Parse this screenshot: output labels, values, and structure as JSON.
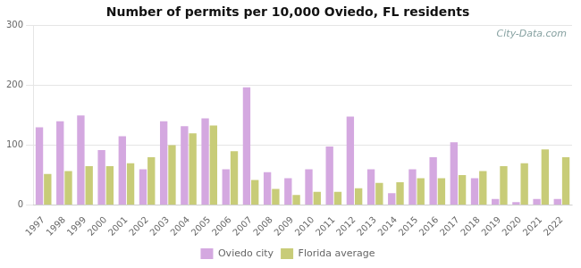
{
  "chart_data": {
    "type": "bar",
    "title": "Number of permits per 10,000 Oviedo, FL residents",
    "categories": [
      "1997",
      "1998",
      "1999",
      "2000",
      "2001",
      "2002",
      "2003",
      "2004",
      "2005",
      "2006",
      "2007",
      "2008",
      "2009",
      "2010",
      "2011",
      "2012",
      "2013",
      "2014",
      "2015",
      "2016",
      "2017",
      "2018",
      "2019",
      "2020",
      "2021",
      "2022"
    ],
    "series": [
      {
        "name": "Oviedo city",
        "color": "#d4a8e0",
        "values": [
          130,
          140,
          150,
          92,
          115,
          60,
          140,
          132,
          145,
          60,
          197,
          55,
          45,
          60,
          98,
          148,
          60,
          20,
          60,
          80,
          105,
          45,
          10,
          5,
          10,
          10
        ]
      },
      {
        "name": "Florida average",
        "color": "#c8cc78",
        "values": [
          52,
          57,
          65,
          65,
          70,
          80,
          100,
          120,
          133,
          90,
          42,
          27,
          17,
          22,
          22,
          28,
          37,
          38,
          45,
          45,
          50,
          57,
          65,
          70,
          93,
          80
        ]
      }
    ],
    "ylim": [
      0,
      300
    ],
    "yticks": [
      0,
      100,
      200,
      300
    ],
    "grid": true,
    "legend": "bottom",
    "annotations": [
      "City-Data.com"
    ]
  }
}
